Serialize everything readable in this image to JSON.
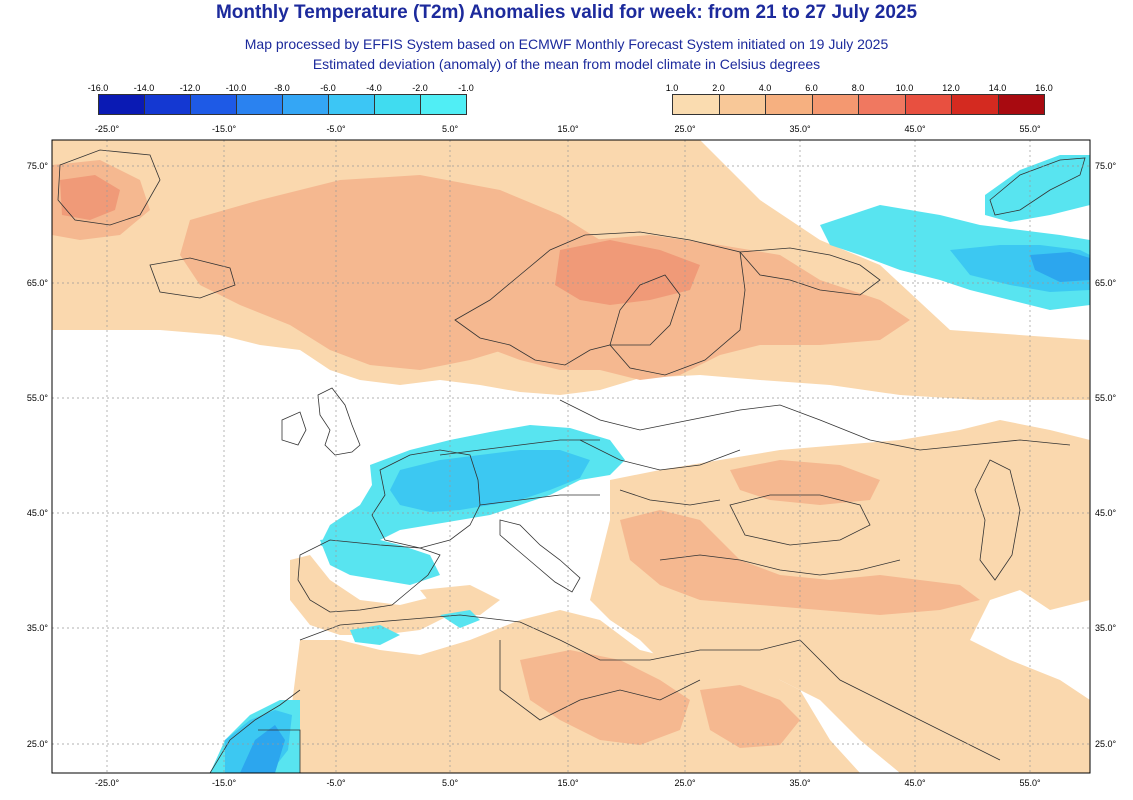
{
  "title": "Monthly Temperature (T2m) Anomalies valid for week: from 21 to 27 July 2025",
  "subtitle1": "Map processed by EFFIS System based on ECMWF Monthly Forecast System initiated on 19 July 2025",
  "subtitle2": "Estimated deviation (anomaly) of the mean from model climate in Celsius degrees",
  "legend_cold": {
    "labels": [
      "-16.0",
      "-14.0",
      "-12.0",
      "-10.0",
      "-8.0",
      "-6.0",
      "-4.0",
      "-2.0",
      "-1.0"
    ],
    "colors": [
      "#0a1ab4",
      "#1438d2",
      "#1e5ae6",
      "#2a82f0",
      "#34a6f5",
      "#3cc6f5",
      "#40dcf0",
      "#50eef5"
    ]
  },
  "legend_warm": {
    "labels": [
      "1.0",
      "2.0",
      "4.0",
      "6.0",
      "8.0",
      "10.0",
      "12.0",
      "14.0",
      "16.0"
    ],
    "colors": [
      "#fadcb0",
      "#f8c898",
      "#f6b080",
      "#f49870",
      "#f07860",
      "#e85040",
      "#d42a20",
      "#a80a10"
    ]
  },
  "axes": {
    "lon_labels": [
      "-25.0°",
      "-15.0°",
      "-5.0°",
      "5.0°",
      "15.0°",
      "25.0°",
      "35.0°",
      "45.0°",
      "55.0°"
    ],
    "lat_labels": [
      "75.0°",
      "65.0°",
      "55.0°",
      "45.0°",
      "35.0°",
      "25.0°"
    ]
  },
  "anomaly_colors": {
    "warm_light": "#fad8ae",
    "warm_medium": "#f5b890",
    "warm_strong": "#f09a78",
    "warm_stronger": "#ec7a5e",
    "cold_light": "#58e4f0",
    "cold_medium": "#3cc8f2",
    "cold_strong": "#2ca6ee",
    "cold_stronger": "#1f70dc"
  }
}
